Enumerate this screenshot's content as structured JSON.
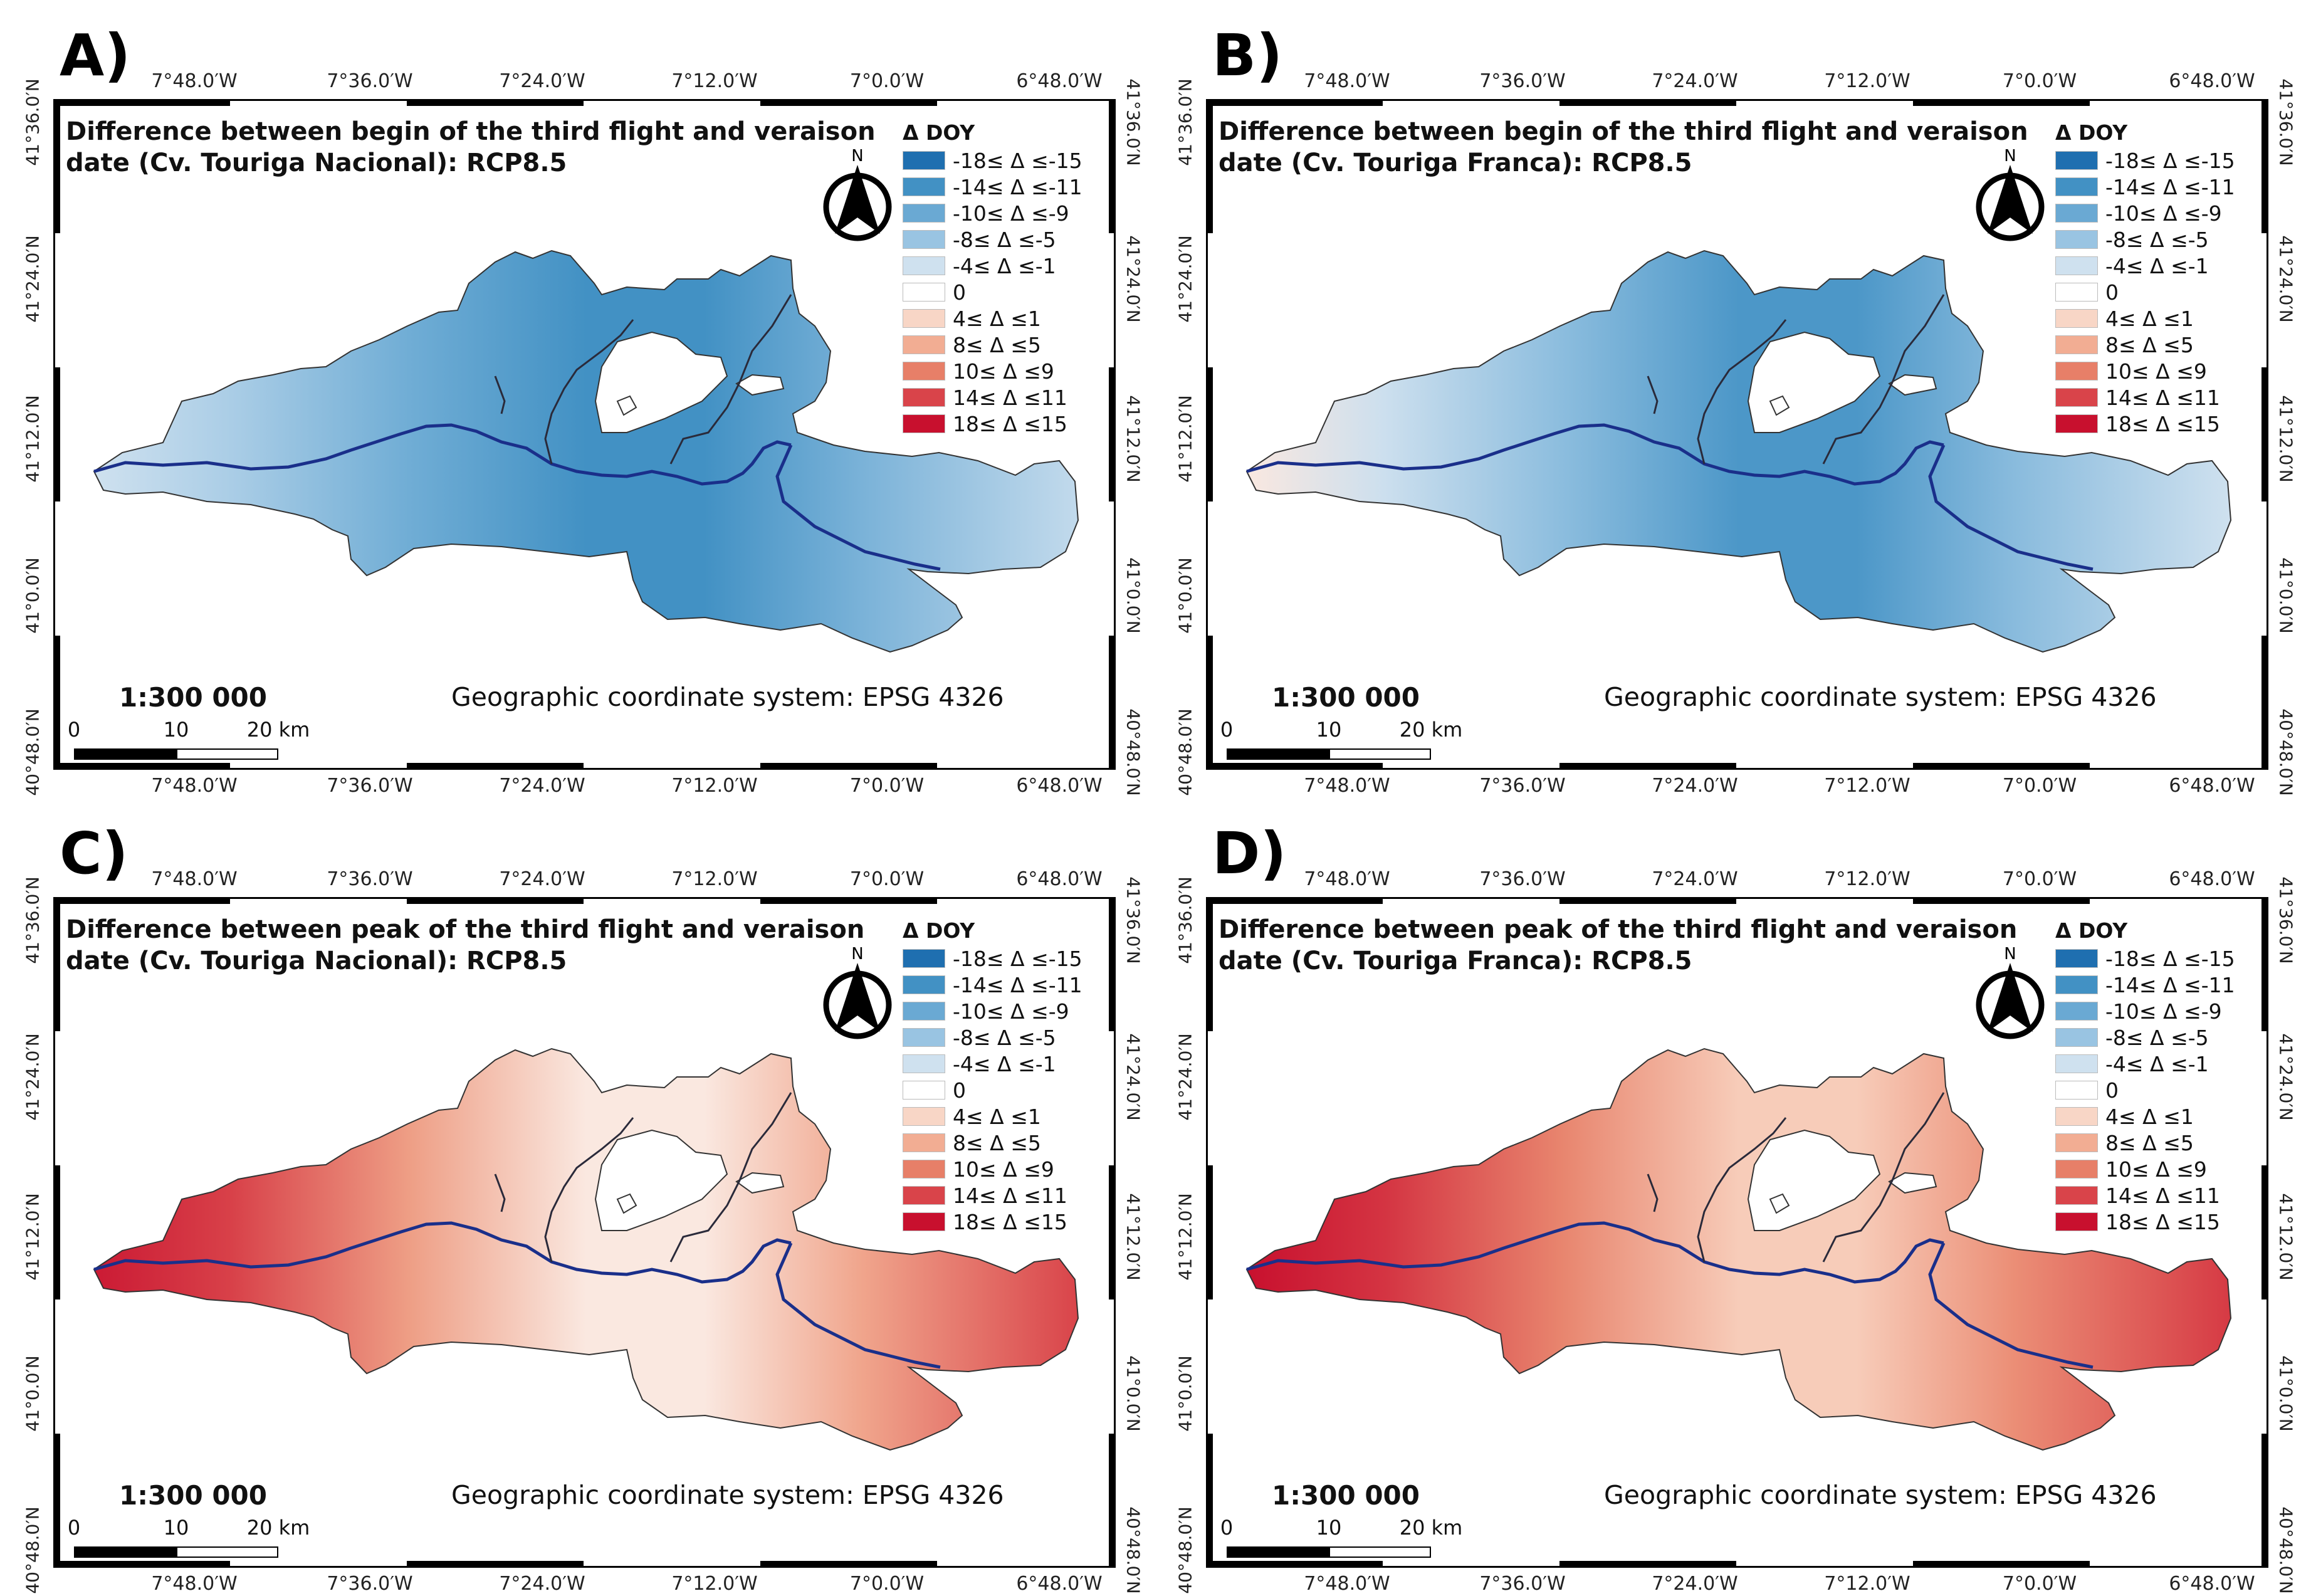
{
  "panels": [
    {
      "letter": "A)",
      "title_line1": "Difference between begin of the third flight and veraison",
      "title_line2": "date (Cv. Touriga Nacional): RCP8.5",
      "scheme": "cool",
      "west_delta": -2,
      "central_delta": -13,
      "east_delta": -3
    },
    {
      "letter": "B)",
      "title_line1": "Difference between begin of the third flight and veraison",
      "title_line2": "date (Cv. Touriga Franca): RCP8.5",
      "scheme": "cool",
      "west_delta": 1,
      "central_delta": -12,
      "east_delta": -2
    },
    {
      "letter": "C)",
      "title_line1": "Difference between peak of the third flight and veraison",
      "title_line2": "date (Cv. Touriga Nacional): RCP8.5",
      "scheme": "warm",
      "west_delta": 16,
      "central_delta": 1,
      "east_delta": 12
    },
    {
      "letter": "D)",
      "title_line1": "Difference between peak of the third flight and veraison",
      "title_line2": "date (Cv. Touriga Franca): RCP8.5",
      "scheme": "warm",
      "west_delta": 17,
      "central_delta": 3,
      "east_delta": 13
    }
  ],
  "legend": {
    "title": "Δ DOY",
    "classes": [
      {
        "label": "-18≤ Δ ≤-15",
        "color": "#1f6fb0"
      },
      {
        "label": "-14≤ Δ ≤-11",
        "color": "#4291c4"
      },
      {
        "label": "-10≤ Δ ≤-9",
        "color": "#6aa9d3"
      },
      {
        "label": "-8≤ Δ ≤-5",
        "color": "#99c4e2"
      },
      {
        "label": "-4≤ Δ ≤-1",
        "color": "#cfe1ef"
      },
      {
        "label": "0",
        "color": "#ffffff"
      },
      {
        "label": "4≤ Δ ≤1",
        "color": "#f8d6c6"
      },
      {
        "label": "8≤ Δ ≤5",
        "color": "#f2ad93"
      },
      {
        "label": "10≤ Δ ≤9",
        "color": "#e77f68"
      },
      {
        "label": "14≤ Δ ≤11",
        "color": "#d9444a"
      },
      {
        "label": "18≤ Δ ≤15",
        "color": "#c8102e"
      }
    ]
  },
  "lon_ticks": [
    "7°48.0′W",
    "7°36.0′W",
    "7°24.0′W",
    "7°12.0′W",
    "7°0.0′W",
    "6°48.0′W"
  ],
  "lat_ticks": [
    "41°36.0′N",
    "41°24.0′N",
    "41°12.0′N",
    "41°0.0′N",
    "40°48.0′N"
  ],
  "north_label": "N",
  "scale": "1:300 000",
  "crs": "Geographic coordinate system: EPSG 4326",
  "scalebar_labels": [
    "0",
    "10",
    "20 km"
  ],
  "colors": {
    "river": "#1a2f8a",
    "border": "#333333"
  }
}
